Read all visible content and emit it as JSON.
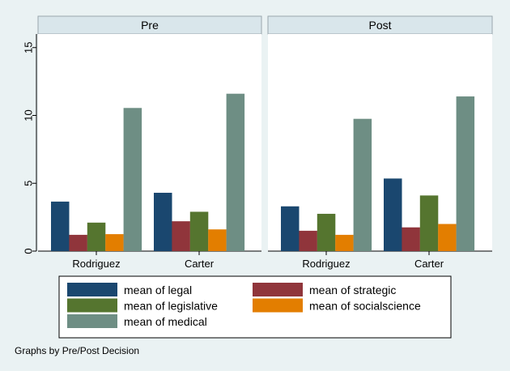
{
  "chart_data": {
    "type": "bar",
    "panels": [
      {
        "title": "Pre",
        "categories": [
          "Rodriguez",
          "Carter"
        ],
        "series": [
          {
            "name": "mean of legal",
            "values": [
              3.65,
              4.3
            ]
          },
          {
            "name": "mean of strategic",
            "values": [
              1.2,
              2.2
            ]
          },
          {
            "name": "mean of legislative",
            "values": [
              2.1,
              2.9
            ]
          },
          {
            "name": "mean of socialscience",
            "values": [
              1.25,
              1.6
            ]
          },
          {
            "name": "mean of medical",
            "values": [
              10.55,
              11.6
            ]
          }
        ]
      },
      {
        "title": "Post",
        "categories": [
          "Rodriguez",
          "Carter"
        ],
        "series": [
          {
            "name": "mean of legal",
            "values": [
              3.3,
              5.35
            ]
          },
          {
            "name": "mean of strategic",
            "values": [
              1.5,
              1.75
            ]
          },
          {
            "name": "mean of legislative",
            "values": [
              2.75,
              4.1
            ]
          },
          {
            "name": "mean of socialscience",
            "values": [
              1.2,
              2.0
            ]
          },
          {
            "name": "mean of medical",
            "values": [
              9.75,
              11.4
            ]
          }
        ]
      }
    ],
    "ylim": [
      0,
      16
    ],
    "yticks": [
      0,
      5,
      10,
      15
    ],
    "colors": [
      "#1a476f",
      "#90353b",
      "#55752f",
      "#e37e00",
      "#6e8e84"
    ],
    "legend_position": "bottom",
    "grid": false,
    "note": "Graphs by Pre/Post Decision"
  }
}
